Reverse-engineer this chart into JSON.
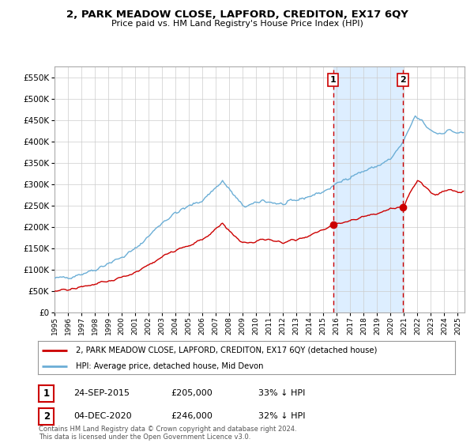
{
  "title": "2, PARK MEADOW CLOSE, LAPFORD, CREDITON, EX17 6QY",
  "subtitle": "Price paid vs. HM Land Registry's House Price Index (HPI)",
  "legend_line1": "2, PARK MEADOW CLOSE, LAPFORD, CREDITON, EX17 6QY (detached house)",
  "legend_line2": "HPI: Average price, detached house, Mid Devon",
  "annotation1_label": "1",
  "annotation1_date": "24-SEP-2015",
  "annotation1_price": "£205,000",
  "annotation1_hpi": "33% ↓ HPI",
  "annotation1_year": 2015.73,
  "annotation1_value": 205000,
  "annotation2_label": "2",
  "annotation2_date": "04-DEC-2020",
  "annotation2_price": "£246,000",
  "annotation2_hpi": "32% ↓ HPI",
  "annotation2_year": 2020.92,
  "annotation2_value": 246000,
  "footer": "Contains HM Land Registry data © Crown copyright and database right 2024.\nThis data is licensed under the Open Government Licence v3.0.",
  "hpi_color": "#6baed6",
  "price_color": "#cc0000",
  "dot_color": "#cc0000",
  "vline_color": "#cc0000",
  "shade_color": "#ddeeff",
  "background_color": "#ffffff",
  "grid_color": "#cccccc",
  "ylim": [
    0,
    575000
  ],
  "yticks": [
    0,
    50000,
    100000,
    150000,
    200000,
    250000,
    300000,
    350000,
    400000,
    450000,
    500000,
    550000
  ],
  "xlim_start": 1995.0,
  "xlim_end": 2025.5
}
